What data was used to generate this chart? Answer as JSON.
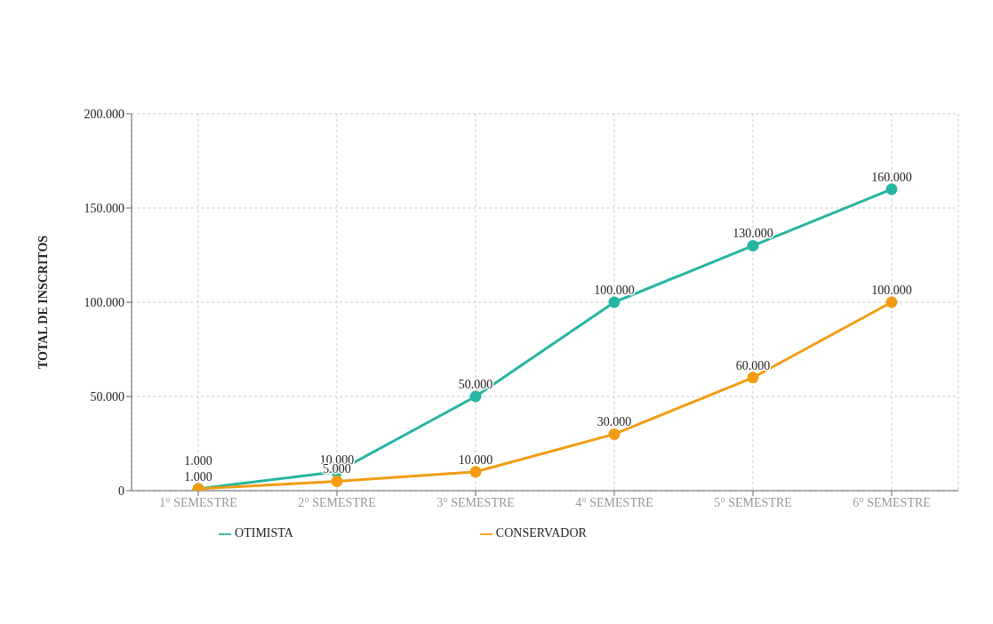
{
  "chart_data": {
    "type": "line",
    "ylabel": "TOTAL DE INSCRITOS",
    "categories": [
      "1° SEMESTRE",
      "2° SEMESTRE",
      "3° SEMESTRE",
      "4° SEMESTRE",
      "5° SEMESTRE",
      "6° SEMESTRE"
    ],
    "series": [
      {
        "name": "OTIMISTA",
        "color": "#26b5a0",
        "values": [
          1000,
          10000,
          50000,
          100000,
          130000,
          160000
        ],
        "value_labels": [
          "1.000",
          "10.000",
          "50.000",
          "100.000",
          "130.000",
          "160.000"
        ]
      },
      {
        "name": "CONSERVADOR",
        "color": "#f39c12",
        "values": [
          1000,
          5000,
          10000,
          30000,
          60000,
          100000
        ],
        "value_labels": [
          "1.000",
          "5.000",
          "10.000",
          "30.000",
          "60.000",
          "100.000"
        ]
      }
    ],
    "ylim": [
      0,
      200000
    ],
    "yticks": [
      {
        "value": 0,
        "label": "0"
      },
      {
        "value": 50000,
        "label": "50.000"
      },
      {
        "value": 100000,
        "label": "100.000"
      },
      {
        "value": 150000,
        "label": "150.000"
      },
      {
        "value": 200000,
        "label": "200.000"
      }
    ],
    "grid": true,
    "legend": "bottom",
    "marker": "circle",
    "line_style": "solid"
  }
}
